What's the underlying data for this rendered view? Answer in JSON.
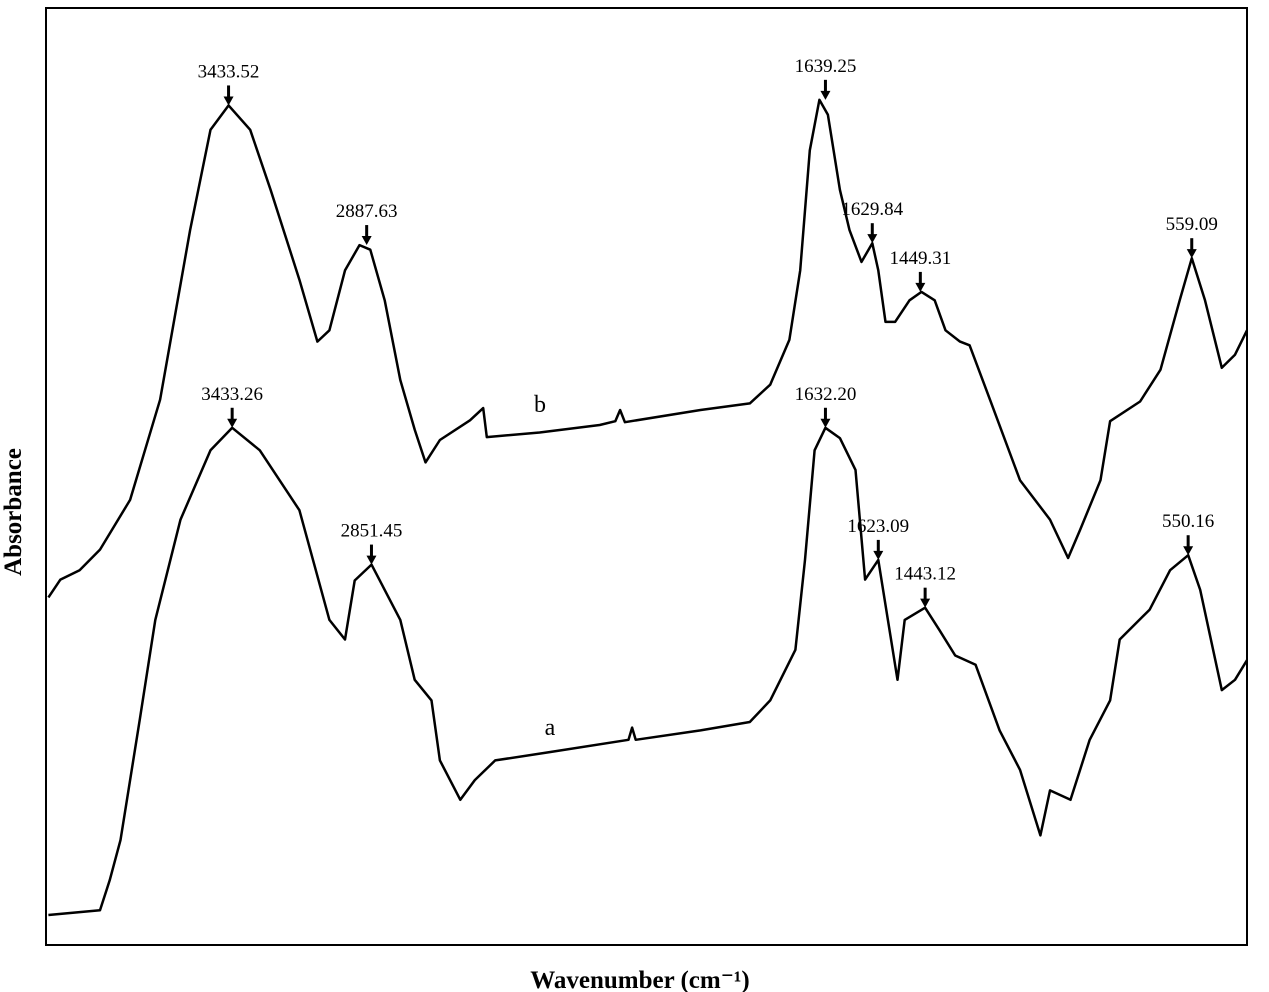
{
  "chart_data": {
    "type": "line",
    "x_label": "Wavenumber (cm⁻¹)",
    "y_label": "Absorbance",
    "xlim": [
      0,
      100
    ],
    "ylim": [
      0,
      100
    ],
    "series": [
      {
        "name": "b",
        "color": "#000000",
        "x": [
          0.2,
          1.2,
          2.8,
          4.5,
          7.0,
          9.5,
          12.0,
          13.7,
          15.2,
          17.0,
          18.7,
          21.1,
          22.6,
          23.6,
          24.9,
          26.1,
          27.0,
          28.2,
          29.5,
          30.7,
          31.6,
          32.8,
          35.3,
          36.4,
          36.7,
          41.1,
          46.1,
          47.4,
          47.8,
          48.2,
          54.5,
          58.6,
          60.3,
          61.9,
          62.8,
          63.6,
          64.4,
          65.1,
          66.1,
          66.9,
          67.9,
          68.8,
          69.3,
          69.9,
          70.7,
          71.9,
          72.9,
          74.0,
          74.9,
          76.1,
          76.9,
          78.6,
          81.1,
          83.6,
          85.1,
          86.1,
          87.8,
          88.6,
          91.1,
          92.8,
          94.4,
          95.4,
          96.5,
          97.9,
          99.0,
          100
        ],
        "values": [
          37.1,
          39.0,
          40.0,
          42.2,
          47.5,
          58.2,
          76.3,
          87.0,
          89.6,
          87.0,
          80.6,
          71.0,
          64.4,
          65.6,
          72.0,
          74.7,
          74.2,
          68.8,
          60.3,
          55.0,
          51.5,
          53.9,
          56.0,
          57.3,
          54.2,
          54.7,
          55.5,
          55.9,
          57.1,
          55.8,
          57.1,
          57.8,
          59.8,
          64.6,
          72.0,
          84.8,
          90.2,
          88.6,
          80.6,
          76.3,
          72.9,
          74.9,
          72.0,
          66.5,
          66.5,
          68.8,
          69.7,
          68.8,
          65.6,
          64.4,
          64.0,
          58.2,
          49.6,
          45.4,
          41.3,
          44.3,
          49.6,
          55.9,
          58.0,
          61.4,
          68.8,
          73.3,
          68.8,
          61.6,
          63.0,
          65.6
        ]
      },
      {
        "name": "a",
        "color": "#000000",
        "x": [
          0.2,
          4.5,
          5.3,
          6.2,
          7.8,
          9.1,
          11.2,
          13.7,
          15.5,
          17.8,
          21.1,
          23.6,
          24.9,
          25.7,
          27.1,
          28.2,
          29.5,
          30.7,
          32.1,
          32.8,
          34.5,
          35.7,
          37.4,
          42.0,
          48.5,
          48.8,
          49.1,
          54.5,
          58.6,
          60.3,
          62.4,
          63.2,
          64.0,
          64.9,
          66.1,
          67.4,
          68.2,
          69.3,
          70.1,
          70.9,
          71.5,
          73.2,
          74.4,
          75.7,
          77.4,
          79.4,
          81.1,
          82.8,
          83.6,
          85.3,
          86.9,
          88.6,
          89.4,
          91.9,
          93.6,
          95.1,
          96.1,
          97.9,
          99.0,
          100
        ],
        "values": [
          3.2,
          3.7,
          6.9,
          11.2,
          24.0,
          34.7,
          45.4,
          52.8,
          55.2,
          52.8,
          46.4,
          34.7,
          32.6,
          38.9,
          40.6,
          37.9,
          34.7,
          28.3,
          26.1,
          19.7,
          15.5,
          17.6,
          19.7,
          20.6,
          21.9,
          23.2,
          21.9,
          22.9,
          23.8,
          26.1,
          31.5,
          41.1,
          52.8,
          55.2,
          54.1,
          50.7,
          39.0,
          41.1,
          34.7,
          28.3,
          34.7,
          36.0,
          33.6,
          30.9,
          29.9,
          22.9,
          18.7,
          11.7,
          16.5,
          15.5,
          21.9,
          26.1,
          32.6,
          35.8,
          40.0,
          41.6,
          37.9,
          27.2,
          28.3,
          30.4
        ]
      }
    ],
    "annotations": [
      {
        "text": "3433.52",
        "x": 15.2,
        "y": 89.6
      },
      {
        "text": "2887.63",
        "x": 26.7,
        "y": 74.7
      },
      {
        "text": "1639.25",
        "x": 64.9,
        "y": 90.2
      },
      {
        "text": "1629.84",
        "x": 68.8,
        "y": 74.9
      },
      {
        "text": "1449.31",
        "x": 72.8,
        "y": 69.7
      },
      {
        "text": "559.09",
        "x": 95.4,
        "y": 73.3
      },
      {
        "text": "3433.26",
        "x": 15.5,
        "y": 55.2
      },
      {
        "text": "2851.45",
        "x": 27.1,
        "y": 40.6
      },
      {
        "text": "1632.20",
        "x": 64.9,
        "y": 55.2
      },
      {
        "text": "1623.09",
        "x": 69.3,
        "y": 41.1
      },
      {
        "text": "1443.12",
        "x": 73.2,
        "y": 36.0
      },
      {
        "text": "550.16",
        "x": 95.1,
        "y": 41.6
      }
    ]
  }
}
